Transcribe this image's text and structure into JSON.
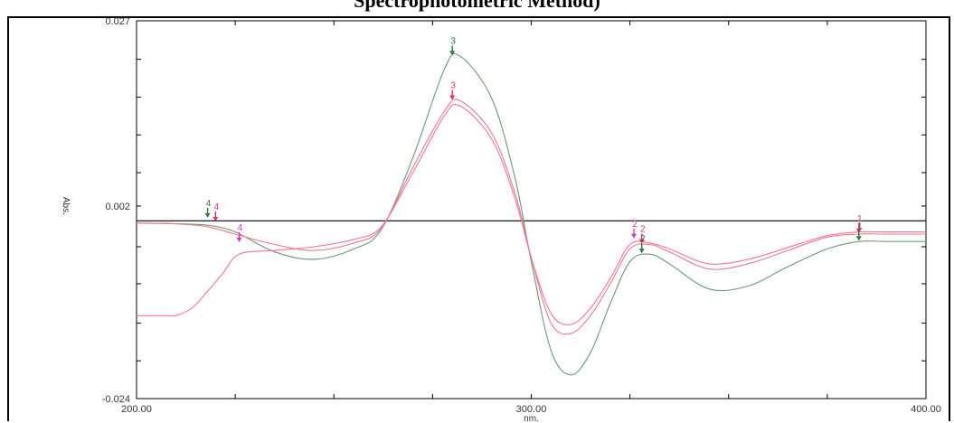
{
  "title": "Spectrophotometric Method)",
  "chart_data": {
    "type": "line",
    "xlabel": "nm.",
    "ylabel": "Abs.",
    "xlim": [
      200,
      400
    ],
    "ylim": [
      -0.024,
      0.027
    ],
    "x_tick_labels": [
      "200.00",
      "300.00",
      "400.00"
    ],
    "y_tick_labels": [
      "0.027",
      "0.002",
      "-0.024"
    ],
    "x_minor_ticks": [
      200,
      225,
      250,
      275,
      300,
      325,
      350,
      375,
      400
    ],
    "y_minor_ticks": [
      0.027,
      0.0218,
      0.0167,
      0.0116,
      0.0065,
      0.002,
      -0.0035,
      -0.0085,
      -0.0138,
      -0.0189,
      -0.024
    ],
    "baseline": 0.0,
    "series": [
      {
        "color": "#6a9a72",
        "x": [
          200,
          210,
          218,
          225,
          235,
          245,
          255,
          262,
          270,
          278,
          282,
          290,
          296,
          300,
          305,
          310,
          315,
          320,
          325,
          330,
          335,
          345,
          355,
          365,
          375,
          383,
          390,
          400
        ],
        "y": [
          -0.0003,
          -0.0004,
          -0.0006,
          -0.0015,
          -0.0042,
          -0.0052,
          -0.0038,
          -0.0012,
          0.0085,
          0.0205,
          0.0222,
          0.0165,
          0.0055,
          -0.0055,
          -0.0175,
          -0.0208,
          -0.0178,
          -0.0112,
          -0.0055,
          -0.0045,
          -0.0058,
          -0.0092,
          -0.0088,
          -0.0062,
          -0.0038,
          -0.0028,
          -0.0028,
          -0.0028
        ]
      },
      {
        "color": "#e87a8a",
        "x": [
          200,
          210,
          218,
          225,
          235,
          245,
          255,
          262,
          270,
          278,
          282,
          290,
          296,
          300,
          305,
          310,
          315,
          320,
          325,
          330,
          335,
          345,
          355,
          365,
          375,
          383,
          390,
          400
        ],
        "y": [
          -0.0003,
          -0.0004,
          -0.0008,
          -0.0018,
          -0.0032,
          -0.004,
          -0.003,
          -0.001,
          0.0072,
          0.0148,
          0.0162,
          0.0118,
          0.0035,
          -0.005,
          -0.0138,
          -0.0152,
          -0.0128,
          -0.0085,
          -0.0038,
          -0.0032,
          -0.0042,
          -0.0065,
          -0.0058,
          -0.004,
          -0.0022,
          -0.0018,
          -0.0018,
          -0.0018
        ]
      },
      {
        "color": "#ff6fa0",
        "x": [
          200,
          208,
          210,
          214,
          218,
          222,
          226,
          235,
          245,
          255,
          262,
          270,
          278,
          282,
          290,
          296,
          300,
          305,
          310,
          315,
          320,
          325,
          330,
          335,
          345,
          355,
          365,
          375,
          383,
          390,
          400
        ],
        "y": [
          -0.0128,
          -0.0128,
          -0.0128,
          -0.0118,
          -0.0095,
          -0.007,
          -0.0045,
          -0.004,
          -0.0035,
          -0.0025,
          -0.0008,
          0.0065,
          0.0142,
          0.0155,
          0.011,
          0.0028,
          -0.005,
          -0.0125,
          -0.014,
          -0.0118,
          -0.0078,
          -0.0032,
          -0.003,
          -0.0038,
          -0.0058,
          -0.0052,
          -0.0036,
          -0.002,
          -0.0015,
          -0.0015,
          -0.0015
        ]
      }
    ],
    "markers": [
      {
        "label": "3",
        "x": 280,
        "y": 0.0222,
        "color": "#2a7a3a"
      },
      {
        "label": "3",
        "x": 280,
        "y": 0.0162,
        "color": "#e0306a"
      },
      {
        "label": "4",
        "x": 218,
        "y": 0.0003,
        "color": "#2a7a3a"
      },
      {
        "label": "4",
        "x": 220,
        "y": -0.0002,
        "color": "#e0306a"
      },
      {
        "label": "4",
        "x": 226,
        "y": -0.003,
        "color": "#e030d0"
      },
      {
        "label": "2",
        "x": 326,
        "y": -0.0025,
        "color": "#c040c0"
      },
      {
        "label": "2",
        "x": 328,
        "y": -0.0032,
        "color": "#e0306a"
      },
      {
        "label": "2",
        "x": 328,
        "y": -0.0045,
        "color": "#2a7a3a"
      },
      {
        "label": "1",
        "x": 383,
        "y": -0.0018,
        "color": "#e0306a"
      },
      {
        "label": "1",
        "x": 383,
        "y": -0.0028,
        "color": "#2a7a3a"
      }
    ]
  }
}
